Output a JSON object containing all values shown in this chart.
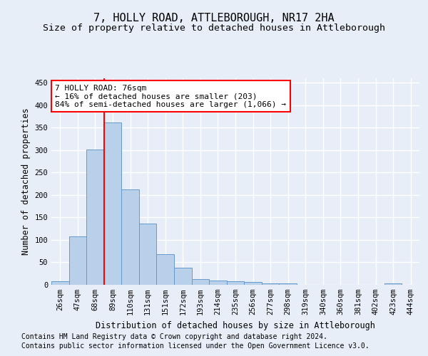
{
  "title": "7, HOLLY ROAD, ATTLEBOROUGH, NR17 2HA",
  "subtitle": "Size of property relative to detached houses in Attleborough",
  "xlabel": "Distribution of detached houses by size in Attleborough",
  "ylabel": "Number of detached properties",
  "footnote1": "Contains HM Land Registry data © Crown copyright and database right 2024.",
  "footnote2": "Contains public sector information licensed under the Open Government Licence v3.0.",
  "bar_labels": [
    "26sqm",
    "47sqm",
    "68sqm",
    "89sqm",
    "110sqm",
    "131sqm",
    "151sqm",
    "172sqm",
    "193sqm",
    "214sqm",
    "235sqm",
    "256sqm",
    "277sqm",
    "298sqm",
    "319sqm",
    "340sqm",
    "360sqm",
    "381sqm",
    "402sqm",
    "423sqm",
    "444sqm"
  ],
  "bar_values": [
    8,
    108,
    302,
    362,
    212,
    136,
    68,
    38,
    13,
    10,
    8,
    6,
    3,
    3,
    0,
    0,
    0,
    0,
    0,
    3,
    0
  ],
  "bar_color": "#b8d0ea",
  "bar_edge_color": "#6699cc",
  "bar_edge_width": 0.7,
  "vline_x": 2.5,
  "vline_color": "red",
  "annotation_text": "7 HOLLY ROAD: 76sqm\n← 16% of detached houses are smaller (203)\n84% of semi-detached houses are larger (1,066) →",
  "annotation_box_color": "white",
  "annotation_box_edge": "red",
  "ylim": [
    0,
    460
  ],
  "yticks": [
    0,
    50,
    100,
    150,
    200,
    250,
    300,
    350,
    400,
    450
  ],
  "title_fontsize": 11,
  "subtitle_fontsize": 9.5,
  "axis_fontsize": 8.5,
  "tick_fontsize": 7.5,
  "annotation_fontsize": 8,
  "footnote_fontsize": 7,
  "bg_color": "#e8eef8",
  "plot_bg_color": "#e8eef8",
  "grid_color": "white",
  "grid_linewidth": 1.0
}
